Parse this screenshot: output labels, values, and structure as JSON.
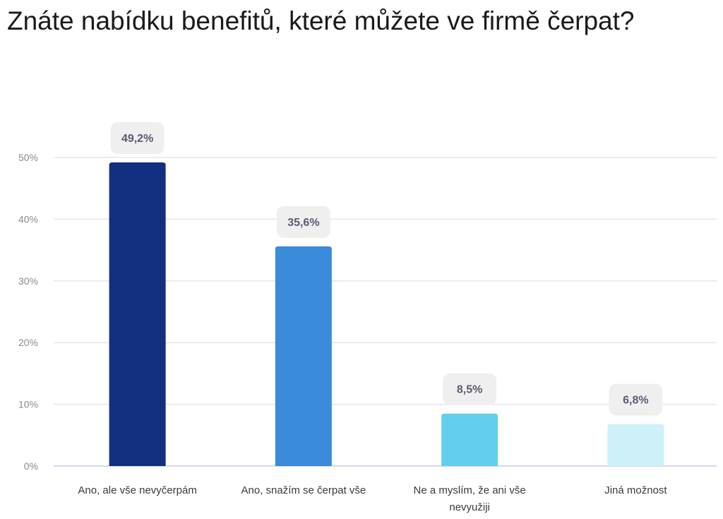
{
  "chart_data": {
    "type": "bar",
    "title": "Znáte nabídku benefitů, které můžete ve firmě čerpat?",
    "categories": [
      [
        "Ano, ale vše nevyčerpám"
      ],
      [
        "Ano, snažím se čerpat vše"
      ],
      [
        "Ne a myslím, že ani vše",
        "nevyužiji"
      ],
      [
        "Jiná možnost"
      ]
    ],
    "values": [
      49.2,
      35.6,
      8.5,
      6.8
    ],
    "data_labels": [
      "49,2%",
      "35,6%",
      "8,5%",
      "6,8%"
    ],
    "colors": [
      "#132f80",
      "#3a8bd9",
      "#62cfef",
      "#cdf0f9"
    ],
    "yticks": [
      0,
      10,
      20,
      30,
      40,
      50
    ],
    "ytick_labels": [
      "0%",
      "10%",
      "20%",
      "30%",
      "40%",
      "50%"
    ],
    "ylim": [
      0,
      50
    ],
    "xlabel": "",
    "ylabel": "",
    "grid": true,
    "legend": "none"
  }
}
